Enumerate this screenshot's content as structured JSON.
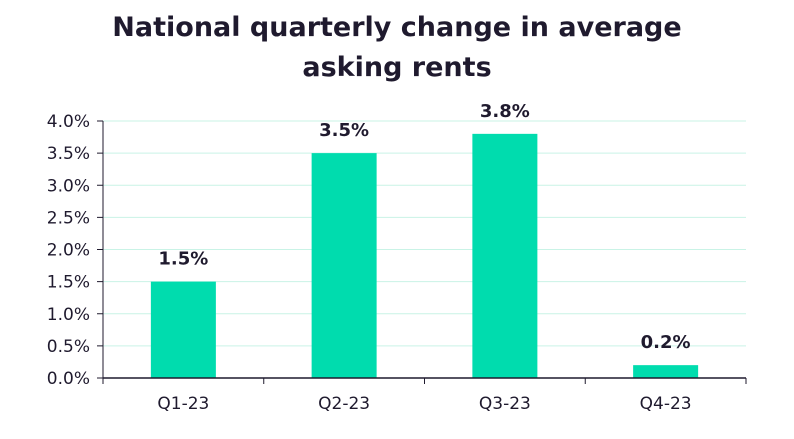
{
  "chart_data": {
    "type": "bar",
    "title_lines": [
      "National quarterly change in average",
      "asking rents"
    ],
    "categories": [
      "Q1-23",
      "Q2-23",
      "Q3-23",
      "Q4-23"
    ],
    "values": [
      1.5,
      3.5,
      3.8,
      0.2
    ],
    "data_labels": [
      "1.5%",
      "3.5%",
      "3.8%",
      "0.2%"
    ],
    "ylim": [
      0,
      4.0
    ],
    "y_ticks": [
      0,
      0.5,
      1.0,
      1.5,
      2.0,
      2.5,
      3.0,
      3.5,
      4.0
    ],
    "y_tick_labels": [
      "0.0%",
      "0.5%",
      "1.0%",
      "1.5%",
      "2.0%",
      "2.5%",
      "3.0%",
      "3.5%",
      "4.0%"
    ],
    "xlabel": "",
    "ylabel": "",
    "grid": true,
    "legend": "none",
    "colors": {
      "bar": "#00dcae",
      "grid": "#c9f3e6",
      "axis": "#1f1a2e",
      "text": "#1f1a2e"
    }
  }
}
